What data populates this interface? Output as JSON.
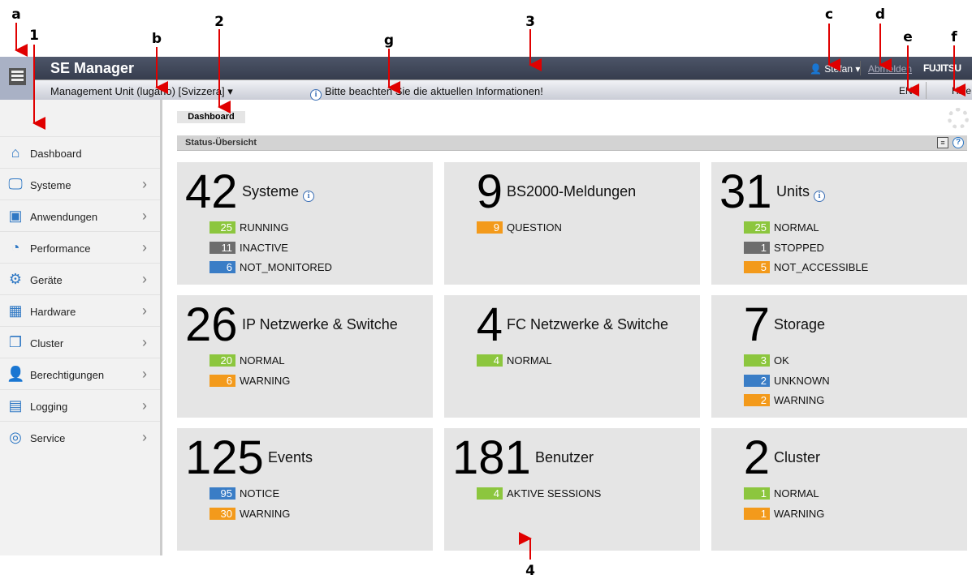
{
  "header": {
    "app_title": "SE Manager",
    "user": "Stefan",
    "logout": "Abmelden",
    "logo": "FUJITSU"
  },
  "subbar": {
    "management_unit": "Management Unit (lugano) [Svizzera]",
    "notice": "Bitte beachten Sie die aktuellen Informationen!",
    "language": "EN",
    "help": "Hilfe"
  },
  "sidebar": {
    "items": [
      {
        "label": "Dashboard",
        "icon": "home-icon",
        "glyph": "⌂"
      },
      {
        "label": "Systeme",
        "icon": "monitors-icon",
        "glyph": "🖵"
      },
      {
        "label": "Anwendungen",
        "icon": "application-window-icon",
        "glyph": "▣"
      },
      {
        "label": "Performance",
        "icon": "speedometer-icon",
        "glyph": "◔"
      },
      {
        "label": "Geräte",
        "icon": "gear-icon",
        "glyph": "⚙"
      },
      {
        "label": "Hardware",
        "icon": "chip-icon",
        "glyph": "▦"
      },
      {
        "label": "Cluster",
        "icon": "cluster-icon",
        "glyph": "❐"
      },
      {
        "label": "Berechtigungen",
        "icon": "user-icon",
        "glyph": "👤"
      },
      {
        "label": "Logging",
        "icon": "document-icon",
        "glyph": "▤"
      },
      {
        "label": "Service",
        "icon": "service-icon",
        "glyph": "◎"
      }
    ]
  },
  "breadcrumb": "Dashboard",
  "status": {
    "title": "Status-Übersicht"
  },
  "colors": {
    "green": "#8cc63e",
    "gray": "#6d6d6d",
    "blue": "#3a7dc6",
    "orange": "#f39a1b",
    "annotation": "#e00000"
  },
  "cards": [
    {
      "number": "42",
      "title": "Systeme",
      "info": true,
      "badges": [
        {
          "v": "25",
          "l": "RUNNING",
          "c": "green"
        },
        {
          "v": "11",
          "l": "INACTIVE",
          "c": "gray"
        },
        {
          "v": "6",
          "l": "NOT_MONITORED",
          "c": "blue"
        }
      ]
    },
    {
      "number": "9",
      "title": "BS2000-Meldungen",
      "info": false,
      "badges": [
        {
          "v": "9",
          "l": "QUESTION",
          "c": "orange"
        }
      ]
    },
    {
      "number": "31",
      "title": "Units",
      "info": true,
      "badges": [
        {
          "v": "25",
          "l": "NORMAL",
          "c": "green"
        },
        {
          "v": "1",
          "l": "STOPPED",
          "c": "gray"
        },
        {
          "v": "5",
          "l": "NOT_ACCESSIBLE",
          "c": "orange"
        }
      ]
    },
    {
      "number": "26",
      "title": "IP Netzwerke & Switche",
      "info": false,
      "badges": [
        {
          "v": "20",
          "l": "NORMAL",
          "c": "green"
        },
        {
          "v": "6",
          "l": "WARNING",
          "c": "orange"
        }
      ]
    },
    {
      "number": "4",
      "title": "FC Netzwerke & Switche",
      "info": false,
      "badges": [
        {
          "v": "4",
          "l": "NORMAL",
          "c": "green"
        }
      ]
    },
    {
      "number": "7",
      "title": "Storage",
      "info": false,
      "badges": [
        {
          "v": "3",
          "l": "OK",
          "c": "green"
        },
        {
          "v": "2",
          "l": "UNKNOWN",
          "c": "blue"
        },
        {
          "v": "2",
          "l": "WARNING",
          "c": "orange"
        }
      ]
    },
    {
      "number": "125",
      "title": "Events",
      "info": false,
      "badges": [
        {
          "v": "95",
          "l": "NOTICE",
          "c": "blue"
        },
        {
          "v": "30",
          "l": "WARNING",
          "c": "orange"
        }
      ]
    },
    {
      "number": "181",
      "title": "Benutzer",
      "info": false,
      "badges": [
        {
          "v": "4",
          "l": "AKTIVE SESSIONS",
          "c": "green"
        }
      ]
    },
    {
      "number": "2",
      "title": "Cluster",
      "info": false,
      "badges": [
        {
          "v": "1",
          "l": "NORMAL",
          "c": "green"
        },
        {
          "v": "1",
          "l": "WARNING",
          "c": "orange"
        }
      ]
    }
  ],
  "annotations": [
    "a",
    "1",
    "b",
    "2",
    "g",
    "3",
    "c",
    "d",
    "e",
    "f",
    "4"
  ]
}
